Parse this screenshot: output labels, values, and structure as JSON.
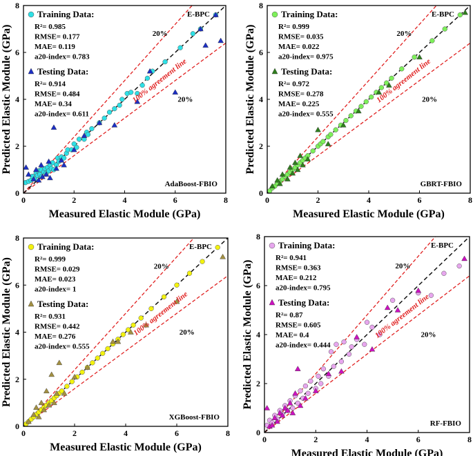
{
  "figure": {
    "x_axis_label": "Measured Elastic Module (GPa)",
    "y_axis_label": "Predicted Elastic Module (GPa)"
  },
  "chart_data": [
    {
      "type": "scatter",
      "model": "AdaBoost-FBIO",
      "corner_label": "E-BPC",
      "agreement_label": "100% agreement line",
      "band_upper_label": "20%",
      "band_lower_label": "20%",
      "xlabel": "Measured Elastic Module (GPa)",
      "ylabel": "Predicted Elastic Module (GPa)",
      "xlim": [
        0,
        8
      ],
      "ylim": [
        0,
        8
      ],
      "ticks": [
        "0",
        "2",
        "4",
        "6",
        "8"
      ],
      "colors": {
        "train": "#2ee0e6",
        "test": "#1c2fc4"
      },
      "train_title": "Training Data:",
      "train_stats": [
        "R²= 0.985",
        "RMSE= 0.177",
        "MAE= 0.119",
        "a20-index= 0.783"
      ],
      "test_title": "Testing Data:",
      "test_stats": [
        "R²= 0.914",
        "RMSE= 0.484",
        "MAE= 0.34",
        "a20-index= 0.611"
      ],
      "train_points": [
        [
          0.08,
          0.45
        ],
        [
          0.2,
          0.5
        ],
        [
          0.3,
          0.55
        ],
        [
          0.35,
          0.72
        ],
        [
          0.45,
          0.6
        ],
        [
          0.5,
          0.85
        ],
        [
          0.55,
          0.75
        ],
        [
          0.6,
          0.95
        ],
        [
          0.65,
          0.8
        ],
        [
          0.7,
          1.0
        ],
        [
          0.72,
          0.7
        ],
        [
          0.8,
          0.9
        ],
        [
          0.85,
          1.05
        ],
        [
          0.9,
          0.85
        ],
        [
          0.95,
          1.1
        ],
        [
          1.0,
          0.95
        ],
        [
          1.05,
          1.2
        ],
        [
          1.1,
          1.05
        ],
        [
          1.15,
          1.3
        ],
        [
          1.2,
          1.0
        ],
        [
          1.3,
          1.2
        ],
        [
          1.35,
          1.5
        ],
        [
          1.4,
          1.35
        ],
        [
          1.5,
          1.55
        ],
        [
          1.6,
          1.5
        ],
        [
          1.7,
          1.7
        ],
        [
          1.75,
          1.85
        ],
        [
          1.9,
          1.85
        ],
        [
          2.0,
          2.1
        ],
        [
          2.1,
          1.95
        ],
        [
          2.2,
          2.3
        ],
        [
          2.4,
          2.3
        ],
        [
          2.5,
          2.6
        ],
        [
          2.55,
          2.5
        ],
        [
          2.7,
          2.75
        ],
        [
          3.0,
          3.0
        ],
        [
          3.2,
          3.2
        ],
        [
          3.4,
          3.45
        ],
        [
          3.6,
          3.6
        ],
        [
          3.8,
          3.75
        ],
        [
          3.9,
          4.0
        ],
        [
          4.1,
          4.25
        ],
        [
          4.25,
          4.3
        ],
        [
          4.5,
          4.25
        ],
        [
          4.7,
          4.6
        ],
        [
          4.9,
          4.9
        ],
        [
          5.1,
          5.2
        ],
        [
          5.6,
          5.6
        ],
        [
          6.2,
          6.2
        ],
        [
          6.7,
          6.8
        ],
        [
          7.0,
          7.0
        ],
        [
          7.6,
          7.6
        ]
      ],
      "test_points": [
        [
          0.1,
          1.1
        ],
        [
          0.2,
          0.8
        ],
        [
          0.4,
          0.6
        ],
        [
          0.5,
          1.0
        ],
        [
          0.6,
          0.55
        ],
        [
          0.7,
          1.2
        ],
        [
          0.75,
          0.7
        ],
        [
          0.9,
          0.8
        ],
        [
          1.0,
          1.35
        ],
        [
          1.05,
          0.65
        ],
        [
          1.2,
          2.8
        ],
        [
          1.3,
          1.05
        ],
        [
          1.5,
          1.4
        ],
        [
          1.6,
          1.2
        ],
        [
          2.0,
          1.85
        ],
        [
          2.4,
          2.45
        ],
        [
          3.0,
          3.0
        ],
        [
          3.6,
          2.9
        ],
        [
          4.5,
          3.9
        ],
        [
          5.0,
          5.2
        ],
        [
          6.0,
          4.3
        ],
        [
          7.0,
          7.0
        ],
        [
          7.6,
          7.6
        ],
        [
          7.8,
          6.5
        ],
        [
          7.2,
          6.3
        ]
      ]
    },
    {
      "type": "scatter",
      "model": "GBRT-FBIO",
      "corner_label": "E-BPC",
      "agreement_label": "100% agreement line",
      "band_upper_label": "20%",
      "band_lower_label": "20%",
      "xlabel": "Measured Elastic Module (GPa)",
      "ylabel": "Predicted Elastic Module (GPa)",
      "xlim": [
        0,
        8
      ],
      "ylim": [
        0,
        8
      ],
      "ticks": [
        "0",
        "2",
        "4",
        "6",
        "8"
      ],
      "colors": {
        "train": "#7df05a",
        "test": "#2f7d1e"
      },
      "train_title": "Training Data:",
      "train_stats": [
        "R²= 0.999",
        "RMSE= 0.035",
        "MAE= 0.022",
        "a20-index= 0.975"
      ],
      "test_title": "Testing Data:",
      "test_stats": [
        "R²= 0.972",
        "RMSE= 0.278",
        "MAE= 0.225",
        "a20-index= 0.555"
      ],
      "train_points": [
        [
          0.1,
          0.1
        ],
        [
          0.2,
          0.22
        ],
        [
          0.3,
          0.3
        ],
        [
          0.4,
          0.42
        ],
        [
          0.5,
          0.5
        ],
        [
          0.6,
          0.6
        ],
        [
          0.7,
          0.72
        ],
        [
          0.8,
          0.8
        ],
        [
          0.9,
          0.9
        ],
        [
          1.0,
          1.0
        ],
        [
          1.1,
          1.1
        ],
        [
          1.2,
          1.2
        ],
        [
          1.3,
          1.3
        ],
        [
          1.4,
          1.4
        ],
        [
          1.5,
          1.5
        ],
        [
          1.6,
          1.6
        ],
        [
          1.8,
          1.8
        ],
        [
          2.0,
          2.0
        ],
        [
          2.1,
          2.1
        ],
        [
          2.2,
          2.2
        ],
        [
          2.4,
          2.4
        ],
        [
          2.5,
          2.5
        ],
        [
          2.7,
          2.7
        ],
        [
          2.9,
          2.9
        ],
        [
          3.1,
          3.1
        ],
        [
          3.3,
          3.3
        ],
        [
          3.5,
          3.5
        ],
        [
          3.7,
          3.7
        ],
        [
          3.9,
          3.9
        ],
        [
          4.1,
          4.1
        ],
        [
          4.3,
          4.3
        ],
        [
          4.5,
          4.5
        ],
        [
          4.7,
          4.7
        ],
        [
          4.9,
          4.9
        ],
        [
          5.3,
          5.3
        ],
        [
          5.8,
          5.8
        ],
        [
          6.5,
          6.5
        ],
        [
          7.0,
          7.0
        ],
        [
          7.6,
          7.6
        ]
      ],
      "test_points": [
        [
          0.2,
          0.3
        ],
        [
          0.4,
          0.55
        ],
        [
          0.5,
          0.4
        ],
        [
          0.6,
          0.8
        ],
        [
          0.8,
          0.6
        ],
        [
          0.9,
          1.1
        ],
        [
          1.0,
          0.85
        ],
        [
          1.1,
          1.3
        ],
        [
          1.2,
          1.0
        ],
        [
          1.3,
          1.6
        ],
        [
          1.4,
          1.2
        ],
        [
          1.6,
          1.45
        ],
        [
          2.0,
          2.7
        ],
        [
          2.4,
          2.1
        ],
        [
          3.0,
          2.9
        ],
        [
          3.6,
          3.5
        ],
        [
          4.4,
          4.3
        ],
        [
          4.8,
          4.6
        ],
        [
          6.0,
          5.8
        ],
        [
          7.8,
          7.7
        ]
      ]
    },
    {
      "type": "scatter",
      "model": "XGBoost-FBIO",
      "corner_label": "E-BPC",
      "agreement_label": "100% agreement line",
      "band_upper_label": "20%",
      "band_lower_label": "20%",
      "xlabel": "Measured Elastic Module (GPa)",
      "ylabel": "Predicted Elastic Module (GPa)",
      "xlim": [
        0,
        8
      ],
      "ylim": [
        0,
        8
      ],
      "ticks": [
        "0",
        "2",
        "4",
        "6",
        "8"
      ],
      "colors": {
        "train": "#f3f20f",
        "test": "#a39042"
      },
      "train_title": "Training Data:",
      "train_stats": [
        "R²= 0.999",
        "RMSE= 0.029",
        "MAE= 0.023",
        "a20-index= 1"
      ],
      "test_title": "Testing Data:",
      "test_stats": [
        "R²= 0.931",
        "RMSE= 0.442",
        "MAE= 0.276",
        "a20-index= 0.555"
      ],
      "train_points": [
        [
          0.1,
          0.1
        ],
        [
          0.2,
          0.2
        ],
        [
          0.3,
          0.3
        ],
        [
          0.4,
          0.4
        ],
        [
          0.5,
          0.5
        ],
        [
          0.6,
          0.6
        ],
        [
          0.7,
          0.7
        ],
        [
          0.8,
          0.8
        ],
        [
          0.9,
          0.9
        ],
        [
          1.0,
          1.0
        ],
        [
          1.1,
          1.1
        ],
        [
          1.2,
          1.2
        ],
        [
          1.3,
          1.3
        ],
        [
          1.4,
          1.4
        ],
        [
          1.5,
          1.5
        ],
        [
          1.7,
          1.7
        ],
        [
          1.9,
          1.9
        ],
        [
          2.1,
          2.1
        ],
        [
          2.3,
          2.3
        ],
        [
          2.5,
          2.5
        ],
        [
          2.7,
          2.7
        ],
        [
          2.9,
          2.9
        ],
        [
          3.1,
          3.1
        ],
        [
          3.3,
          3.3
        ],
        [
          3.5,
          3.5
        ],
        [
          3.7,
          3.7
        ],
        [
          3.9,
          3.9
        ],
        [
          4.1,
          4.1
        ],
        [
          4.3,
          4.3
        ],
        [
          4.6,
          4.6
        ],
        [
          5.0,
          5.0
        ],
        [
          5.5,
          5.5
        ],
        [
          6.0,
          6.0
        ],
        [
          6.5,
          6.5
        ],
        [
          7.0,
          7.0
        ],
        [
          7.6,
          7.6
        ]
      ],
      "test_points": [
        [
          0.2,
          0.2
        ],
        [
          0.4,
          0.5
        ],
        [
          0.5,
          0.8
        ],
        [
          0.6,
          0.4
        ],
        [
          0.7,
          1.0
        ],
        [
          0.8,
          0.7
        ],
        [
          0.9,
          1.5
        ],
        [
          1.0,
          0.9
        ],
        [
          1.1,
          2.2
        ],
        [
          1.2,
          1.0
        ],
        [
          1.3,
          1.4
        ],
        [
          1.4,
          2.7
        ],
        [
          1.6,
          1.4
        ],
        [
          2.0,
          2.1
        ],
        [
          2.5,
          2.5
        ],
        [
          3.5,
          3.6
        ],
        [
          3.7,
          3.6
        ],
        [
          4.2,
          4.0
        ],
        [
          4.8,
          4.3
        ],
        [
          6.0,
          5.3
        ],
        [
          7.8,
          7.2
        ]
      ]
    },
    {
      "type": "scatter",
      "model": "RF-FBIO",
      "corner_label": "E-BPC",
      "agreement_label": "100% agreement line",
      "band_upper_label": "20%",
      "band_lower_label": "20%",
      "xlabel": "Measured Elastic Module (GPa)",
      "ylabel": "Predicted Elastic Module (GPa)",
      "xlim": [
        0,
        8
      ],
      "ylim": [
        0,
        8
      ],
      "ticks": [
        "0",
        "2",
        "4",
        "6",
        "8"
      ],
      "colors": {
        "train": "#e7a6ee",
        "test": "#cc10c0"
      },
      "train_title": "Training Data:",
      "train_stats": [
        "R²= 0.941",
        "RMSE= 0.363",
        "MAE= 0.212",
        "a20-index= 0.795"
      ],
      "test_title": "Testing Data:",
      "test_stats": [
        "R²= 0.87",
        "RMSE= 0.605",
        "MAE= 0.4",
        "a20-index= 0.444"
      ],
      "train_points": [
        [
          0.1,
          0.3
        ],
        [
          0.2,
          0.5
        ],
        [
          0.3,
          0.4
        ],
        [
          0.4,
          0.7
        ],
        [
          0.5,
          0.55
        ],
        [
          0.6,
          0.9
        ],
        [
          0.7,
          0.75
        ],
        [
          0.8,
          1.1
        ],
        [
          0.9,
          0.9
        ],
        [
          1.0,
          1.3
        ],
        [
          1.1,
          1.0
        ],
        [
          1.2,
          1.5
        ],
        [
          1.3,
          1.2
        ],
        [
          1.4,
          1.7
        ],
        [
          1.5,
          1.4
        ],
        [
          1.6,
          1.9
        ],
        [
          1.7,
          1.6
        ],
        [
          1.8,
          2.1
        ],
        [
          2.0,
          1.8
        ],
        [
          2.1,
          2.3
        ],
        [
          2.2,
          2.0
        ],
        [
          2.3,
          2.6
        ],
        [
          2.5,
          2.3
        ],
        [
          2.6,
          3.3
        ],
        [
          2.7,
          2.7
        ],
        [
          2.8,
          3.6
        ],
        [
          3.0,
          2.9
        ],
        [
          3.1,
          3.7
        ],
        [
          3.3,
          3.2
        ],
        [
          3.4,
          3.5
        ],
        [
          3.6,
          3.8
        ],
        [
          3.9,
          3.6
        ],
        [
          4.0,
          4.5
        ],
        [
          4.2,
          4.3
        ],
        [
          4.5,
          4.0
        ],
        [
          5.0,
          5.4
        ],
        [
          6.0,
          5.7
        ],
        [
          6.5,
          5.6
        ],
        [
          7.0,
          6.5
        ],
        [
          7.6,
          6.8
        ]
      ],
      "test_points": [
        [
          0.1,
          1.0
        ],
        [
          0.2,
          0.25
        ],
        [
          0.3,
          0.3
        ],
        [
          0.4,
          0.6
        ],
        [
          0.5,
          0.45
        ],
        [
          0.6,
          0.8
        ],
        [
          0.7,
          0.7
        ],
        [
          0.8,
          1.0
        ],
        [
          0.9,
          0.9
        ],
        [
          1.0,
          1.2
        ],
        [
          1.1,
          0.8
        ],
        [
          1.2,
          1.6
        ],
        [
          1.3,
          2.6
        ],
        [
          1.4,
          1.1
        ],
        [
          1.6,
          1.4
        ],
        [
          2.0,
          1.7
        ],
        [
          2.5,
          2.4
        ],
        [
          3.0,
          2.5
        ],
        [
          3.6,
          3.9
        ],
        [
          4.2,
          3.4
        ],
        [
          4.8,
          5.1
        ],
        [
          5.2,
          5.0
        ],
        [
          6.0,
          5.8
        ],
        [
          7.8,
          7.1
        ]
      ]
    }
  ]
}
